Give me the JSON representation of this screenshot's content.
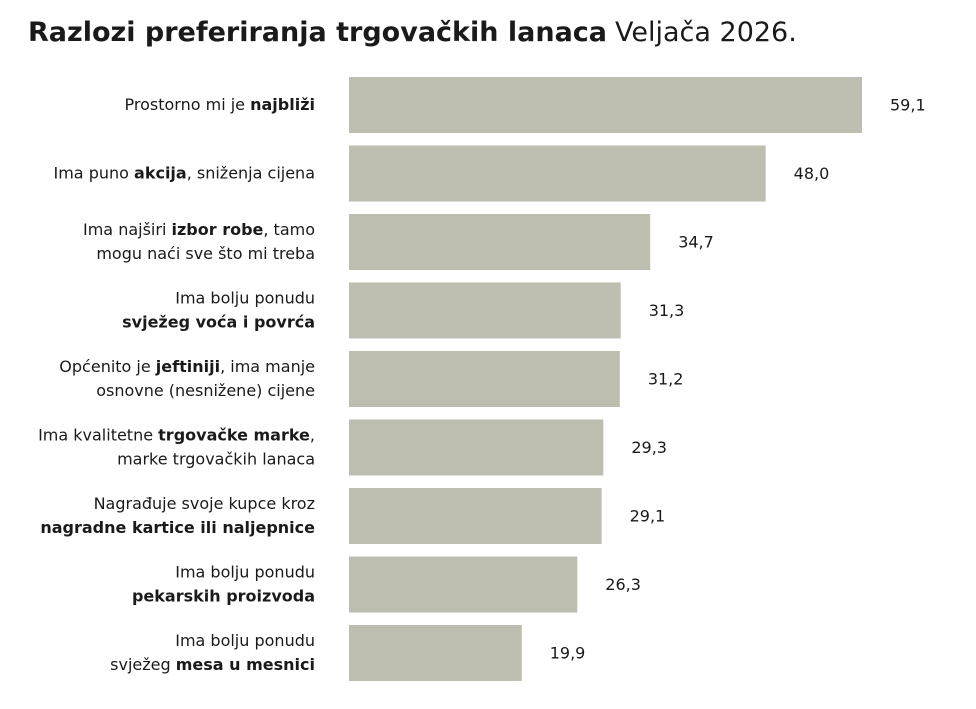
{
  "chart_data": {
    "type": "bar",
    "orientation": "horizontal",
    "title": "Razlozi preferiranja trgovačkih lanaca",
    "subtitle": "Veljača 2026.",
    "color": "#bdbdb0",
    "categories": [
      [
        [
          "Prostorno mi je ",
          {
            "bold": "najbliži"
          }
        ]
      ],
      [
        [
          "Ima puno ",
          {
            "bold": "akcija"
          },
          ", sniženja cijena"
        ]
      ],
      [
        [
          "Ima najširi ",
          {
            "bold": "izbor robe"
          },
          ", tamo"
        ],
        [
          "mogu naći sve što mi treba"
        ]
      ],
      [
        [
          "Ima bolju ponudu"
        ],
        [
          {
            "bold": "svježeg voća i povrća"
          }
        ]
      ],
      [
        [
          "Općenito je ",
          {
            "bold": "jeftiniji"
          },
          ", ima manje"
        ],
        [
          "osnovne (nesnižene) cijene"
        ]
      ],
      [
        [
          "Ima kvalitetne ",
          {
            "bold": "trgovačke marke"
          },
          ","
        ],
        [
          "marke trgovačkih lanaca"
        ]
      ],
      [
        [
          "Nagrađuje svoje kupce kroz"
        ],
        [
          {
            "bold": "nagradne kartice ili naljepnice"
          }
        ]
      ],
      [
        [
          "Ima bolju ponudu"
        ],
        [
          {
            "bold": "pekarskih proizvoda"
          }
        ]
      ],
      [
        [
          "Ima bolju ponudu"
        ],
        [
          "svježeg ",
          {
            "bold": "mesa u mesnici"
          }
        ]
      ]
    ],
    "values": [
      59.1,
      48.0,
      34.7,
      31.3,
      31.2,
      29.3,
      29.1,
      26.3,
      19.9
    ],
    "value_labels": [
      "59,1",
      "48,0",
      "34,7",
      "31,3",
      "31,2",
      "29,3",
      "29,1",
      "26,3",
      "19,9"
    ]
  }
}
